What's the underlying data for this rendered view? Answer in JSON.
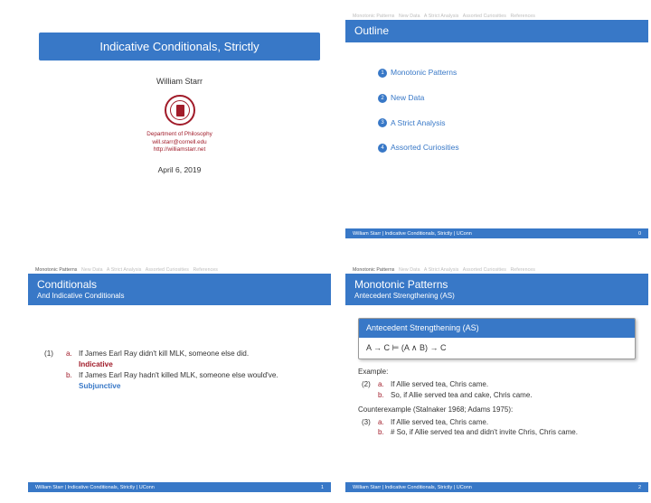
{
  "colors": {
    "blue": "#3878c7",
    "red": "#a11c2a",
    "gray_nav": "#bbbbbb"
  },
  "nav": {
    "items": [
      "Monotonic Patterns",
      "New Data",
      "A Strict Analysis",
      "Assorted Curiosities",
      "References"
    ]
  },
  "footer": {
    "text": "William Starr | Indicative Conditionals, Strictly | UConn",
    "pages": [
      "",
      "0",
      "1",
      "2"
    ]
  },
  "slide1": {
    "title": "Indicative Conditionals, Strictly",
    "author": "William Starr",
    "affil1": "Department of Philosophy",
    "affil2": "will.starr@cornell.edu",
    "affil3": "http://williamstarr.net",
    "date": "April 6, 2019"
  },
  "slide2": {
    "title": "Outline",
    "items": [
      {
        "n": "1",
        "label": "Monotonic Patterns"
      },
      {
        "n": "2",
        "label": "New Data"
      },
      {
        "n": "3",
        "label": "A Strict Analysis"
      },
      {
        "n": "4",
        "label": "Assorted Curiosities"
      }
    ]
  },
  "slide3": {
    "title": "Conditionals",
    "subtitle": "And Indicative Conditionals",
    "num": "(1)",
    "a_text": "If James Earl Ray didn't kill MLK, someone else did.",
    "a_kw": "Indicative",
    "b_text": "If James Earl Ray hadn't killed MLK, someone else would've.",
    "b_kw": "Subjunctive"
  },
  "slide4": {
    "title": "Monotonic Patterns",
    "subtitle": "Antecedent Strengthening (AS)",
    "box_title": "Antecedent Strengthening (AS)",
    "box_body": "A → C ⊨ (A ∧ B) → C",
    "example_label": "Example:",
    "ex2_num": "(2)",
    "ex2_a": "If Allie served tea, Chris came.",
    "ex2_b": "So, if Allie served tea and cake, Chris came.",
    "counter_label": "Counterexample (Stalnaker 1968; Adams 1975):",
    "ex3_num": "(3)",
    "ex3_a": "If Allie served tea, Chris came.",
    "ex3_b": "# So, if Allie served tea and didn't invite Chris, Chris came."
  }
}
